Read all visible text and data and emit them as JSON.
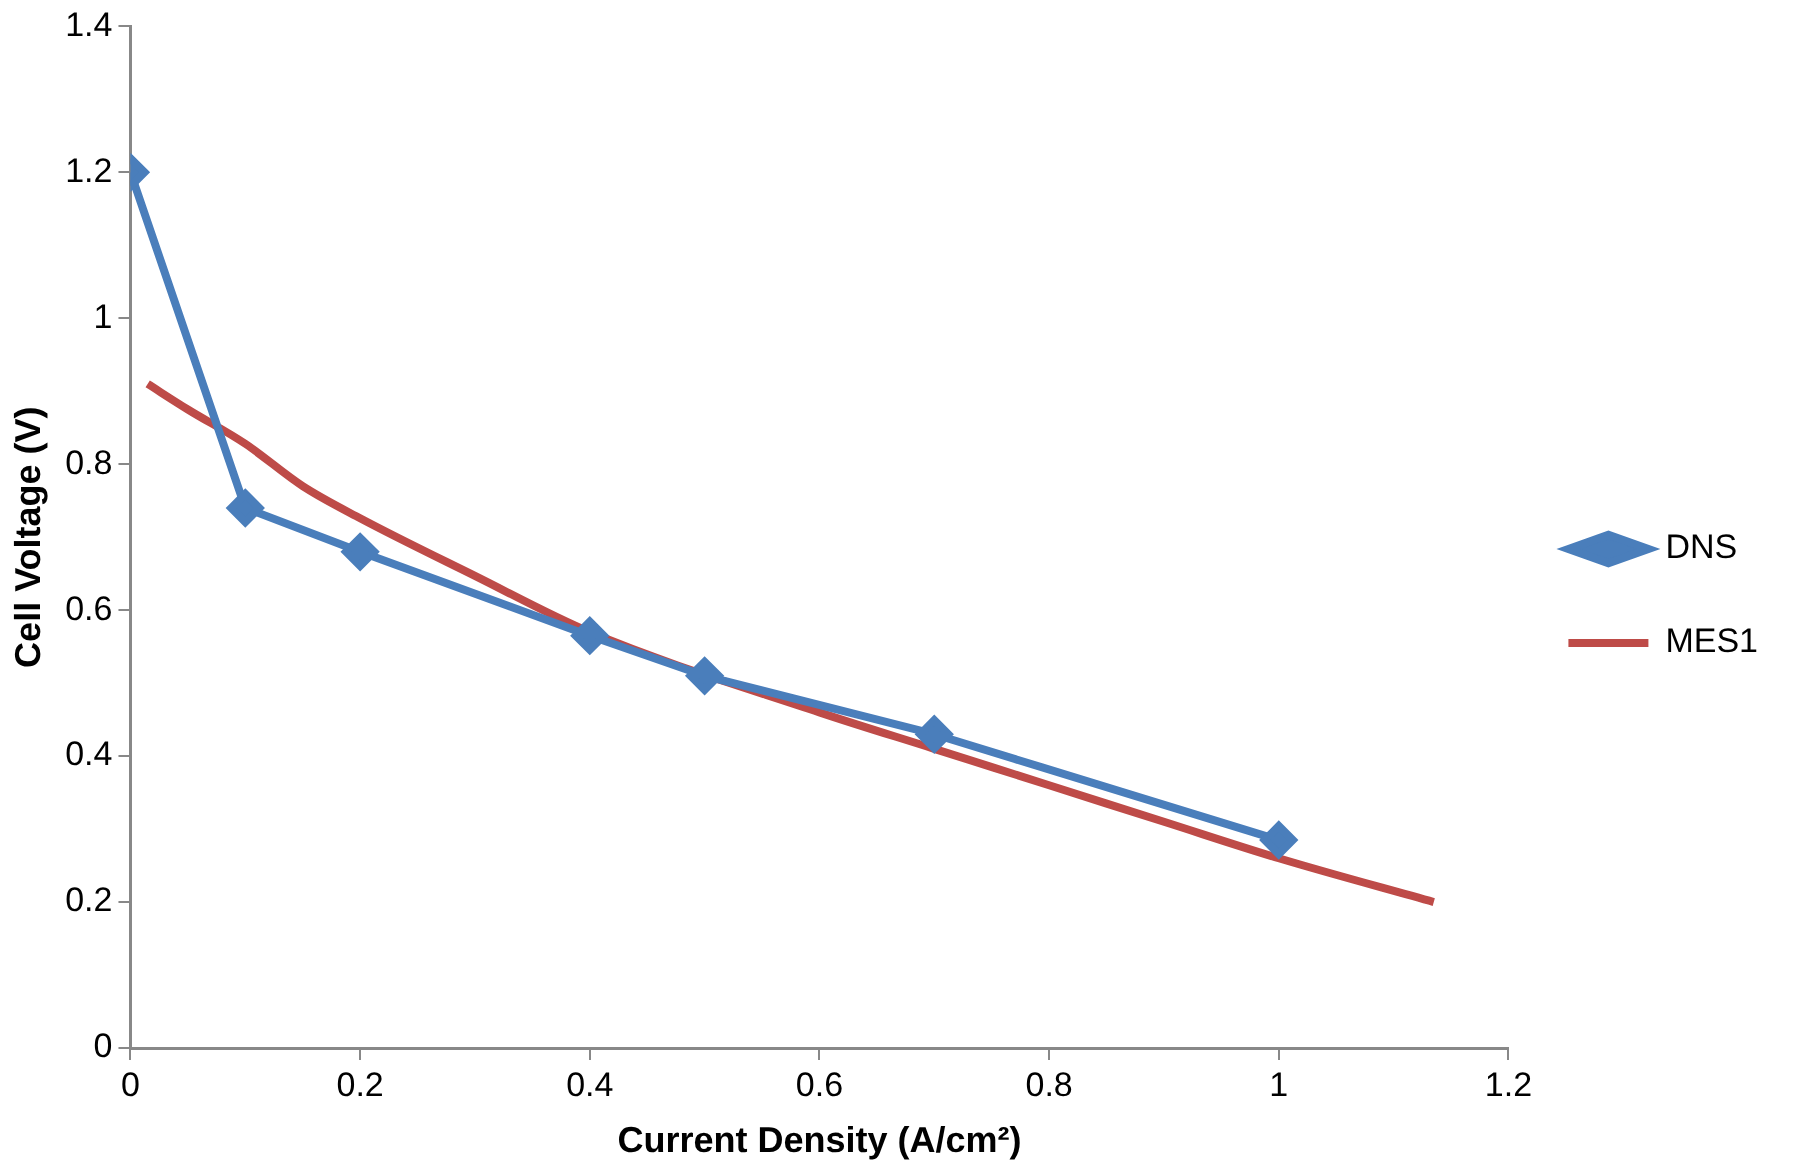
{
  "chart_data": {
    "type": "line",
    "xlabel": "Current Density (A/cm²)",
    "ylabel": "Cell Voltage (V)",
    "xlim": [
      0,
      1.2
    ],
    "xticks": [
      0,
      0.2,
      0.4,
      0.6,
      0.8,
      1,
      1.2
    ],
    "ylim": [
      0,
      1.4
    ],
    "yticks": [
      0,
      0.2,
      0.4,
      0.6,
      0.8,
      1,
      1.2,
      1.4
    ],
    "grid": false,
    "legend": "right",
    "series": [
      {
        "name": "DNS",
        "color": "#4a7ebb",
        "marker": "diamond",
        "x": [
          0,
          0.1,
          0.2,
          0.4,
          0.5,
          0.7,
          1
        ],
        "values": [
          1.2,
          0.74,
          0.68,
          0.565,
          0.51,
          0.43,
          0.285
        ]
      },
      {
        "name": "MES1",
        "color": "#be4b48",
        "marker": "none",
        "x": [
          0.015,
          0.05,
          0.1,
          0.15,
          0.2,
          0.3,
          0.4,
          0.6,
          0.7,
          0.8,
          0.9,
          1,
          1.135
        ],
        "values": [
          0.91,
          0.875,
          0.828,
          0.77,
          0.726,
          0.647,
          0.57,
          0.46,
          0.41,
          0.36,
          0.31,
          0.26,
          0.2
        ]
      }
    ]
  }
}
